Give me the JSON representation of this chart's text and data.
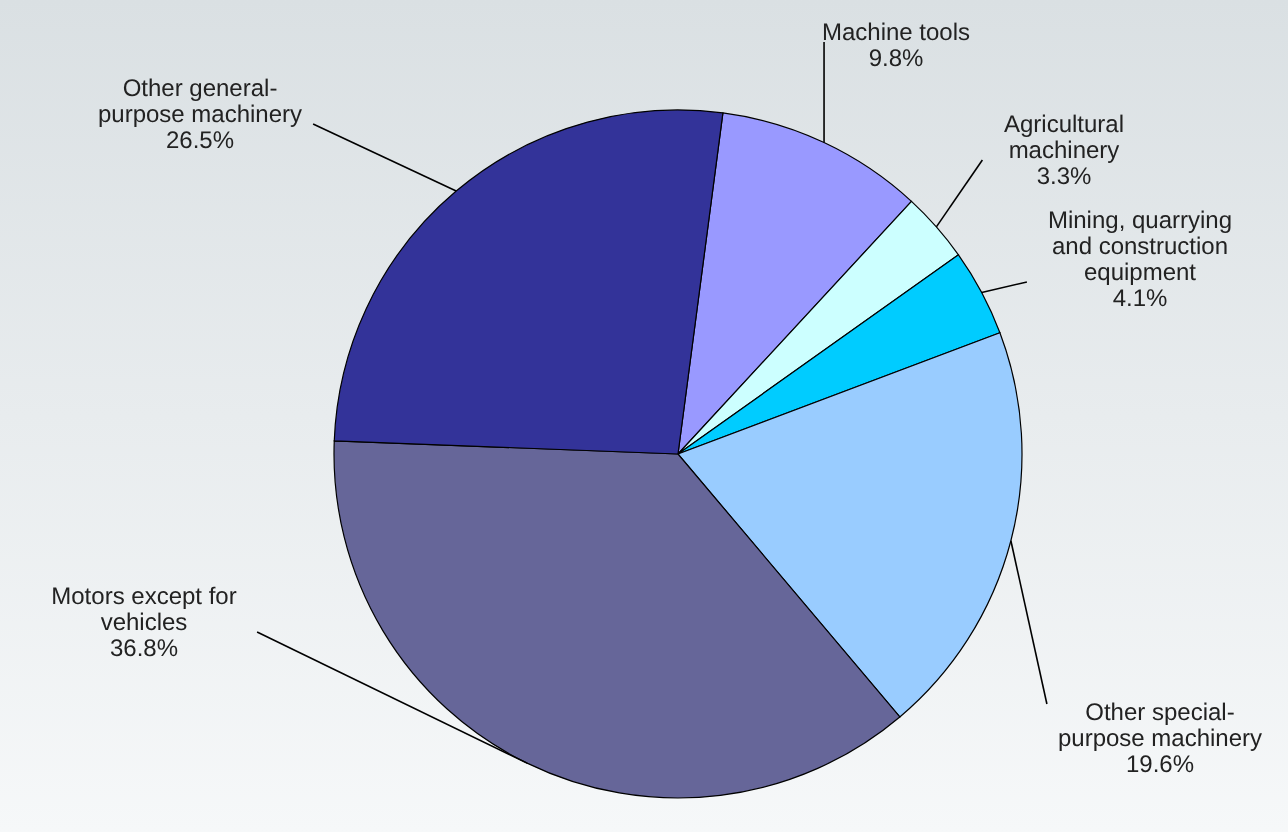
{
  "chart_data": {
    "type": "pie",
    "categories": [
      "Machine tools",
      "Agricultural machinery",
      "Mining, quarrying and construction equipment",
      "Other special-purpose machinery",
      "Motors except for vehicles",
      "Other general-purpose machinery"
    ],
    "values": [
      9.8,
      3.3,
      4.1,
      19.6,
      36.8,
      26.5
    ],
    "value_labels": [
      "9.8%",
      "3.3%",
      "4.1%",
      "19.6%",
      "36.8%",
      "26.5%"
    ],
    "colors": [
      "#9999ff",
      "#ccffff",
      "#00ccff",
      "#99ccff",
      "#666699",
      "#333399"
    ]
  }
}
